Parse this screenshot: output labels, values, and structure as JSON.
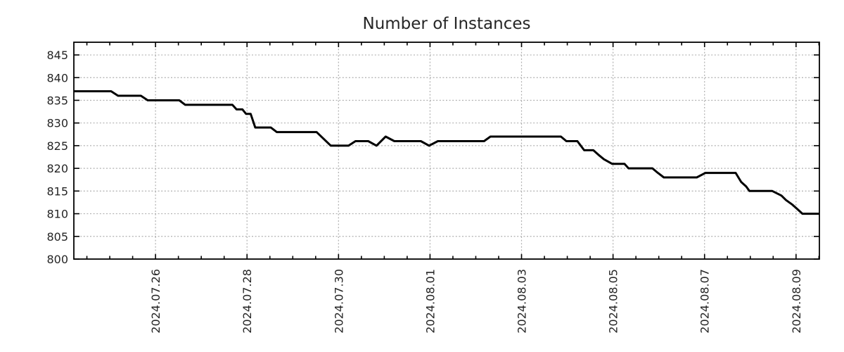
{
  "title": "Number of Instances",
  "colors": {
    "line": "#000000",
    "grid": "#b0b0b0",
    "axis": "#000000",
    "text": "#262626",
    "background": "#ffffff"
  },
  "chart_data": {
    "type": "line",
    "title": "Number of Instances",
    "grid": true,
    "legend": "none",
    "x_axis": {
      "tick_labels": [
        "2024.07.26",
        "2024.07.28",
        "2024.07.30",
        "2024.08.01",
        "2024.08.03",
        "2024.08.05",
        "2024.08.07",
        "2024.08.09"
      ],
      "tick_t": [
        2,
        4,
        6,
        8,
        10,
        12,
        14,
        16
      ],
      "t_unit": "days since 2024-07-24 00:00",
      "range_t": [
        0.215,
        16.51
      ],
      "minor_step": 0.5,
      "label_rotation_deg": -90
    },
    "y_axis": {
      "ticks": [
        800,
        805,
        810,
        815,
        820,
        825,
        830,
        835,
        840,
        845
      ],
      "range": [
        800,
        847.8
      ]
    },
    "series": [
      {
        "name": "instances",
        "points": [
          [
            0.22,
            837
          ],
          [
            1.03,
            837
          ],
          [
            1.18,
            836
          ],
          [
            1.68,
            836
          ],
          [
            1.83,
            835
          ],
          [
            2.52,
            835
          ],
          [
            2.65,
            834
          ],
          [
            3.68,
            834
          ],
          [
            3.77,
            833
          ],
          [
            3.9,
            833
          ],
          [
            3.98,
            832
          ],
          [
            4.08,
            832
          ],
          [
            4.18,
            829
          ],
          [
            4.52,
            829
          ],
          [
            4.65,
            828
          ],
          [
            5.52,
            828
          ],
          [
            5.83,
            825
          ],
          [
            6.22,
            825
          ],
          [
            6.37,
            826
          ],
          [
            6.65,
            826
          ],
          [
            6.83,
            825
          ],
          [
            7.03,
            827
          ],
          [
            7.22,
            826
          ],
          [
            7.8,
            826
          ],
          [
            7.98,
            825
          ],
          [
            8.17,
            826
          ],
          [
            9.18,
            826
          ],
          [
            9.32,
            827
          ],
          [
            10.86,
            827
          ],
          [
            10.98,
            826
          ],
          [
            11.22,
            826
          ],
          [
            11.37,
            824
          ],
          [
            11.57,
            824
          ],
          [
            11.68,
            823
          ],
          [
            11.8,
            822
          ],
          [
            11.98,
            821
          ],
          [
            12.25,
            821
          ],
          [
            12.34,
            820
          ],
          [
            12.86,
            820
          ],
          [
            12.98,
            819
          ],
          [
            13.11,
            818
          ],
          [
            13.83,
            818
          ],
          [
            14.02,
            819
          ],
          [
            14.68,
            819
          ],
          [
            14.8,
            817
          ],
          [
            14.91,
            816
          ],
          [
            14.98,
            815
          ],
          [
            15.48,
            815
          ],
          [
            15.68,
            814
          ],
          [
            15.78,
            813
          ],
          [
            15.92,
            812
          ],
          [
            16.03,
            811
          ],
          [
            16.14,
            810
          ],
          [
            16.51,
            810
          ]
        ]
      }
    ]
  }
}
